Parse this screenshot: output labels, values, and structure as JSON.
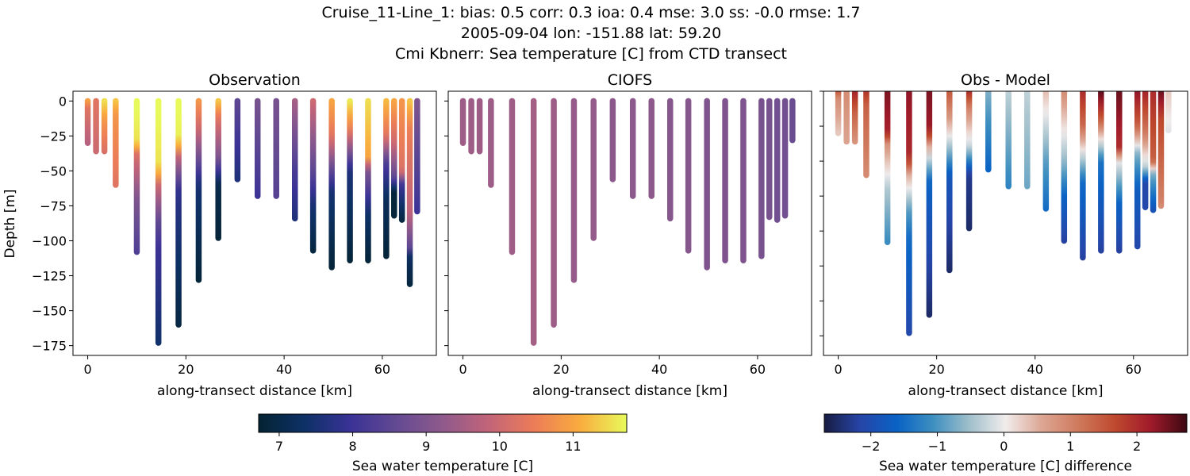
{
  "title_lines": [
    "Cruise_11-Line_1: bias: 0.5  corr: 0.3  ioa: 0.4  mse: 3.0  ss: -0.0  rmse: 1.7",
    "2005-09-04 lon: -151.88 lat: 59.20",
    "Cmi Kbnerr: Sea temperature [C] from CTD transect"
  ],
  "chart_data": [
    {
      "type": "scatter",
      "title": "Observation",
      "xlabel": "along-transect distance [km]",
      "ylabel": "Depth [m]",
      "xlim": [
        -3,
        71
      ],
      "ylim": [
        -182,
        7
      ],
      "xticks": [
        0,
        20,
        40,
        60
      ],
      "yticks": [
        0,
        -25,
        -50,
        -75,
        -100,
        -125,
        -150,
        -175
      ],
      "colormap": "thermal",
      "clim": [
        6.72,
        11.73
      ]
    },
    {
      "type": "scatter",
      "title": "CIOFS",
      "xlabel": "along-transect distance [km]",
      "xlim": [
        -3,
        71
      ],
      "ylim": [
        -182,
        7
      ],
      "xticks": [
        0,
        20,
        40,
        60
      ],
      "colormap": "thermal",
      "clim": [
        6.72,
        11.73
      ]
    },
    {
      "type": "scatter",
      "title": "Obs - Model",
      "xlabel": "along-transect distance [km]",
      "xlim": [
        -3,
        71
      ],
      "ylim": [
        -189,
        0
      ],
      "xticks": [
        0,
        20,
        40,
        60
      ],
      "colormap": "balance",
      "clim": [
        -2.7,
        2.75
      ]
    }
  ],
  "casts": [
    {
      "km": 0,
      "obs_depth": 30,
      "model_depth": 30,
      "model_temp": 9.4,
      "obs": [
        [
          0,
          10.9
        ],
        [
          5,
          10.3
        ],
        [
          30,
          9.7
        ]
      ]
    },
    {
      "km": 1.7,
      "obs_depth": 36,
      "model_depth": 36,
      "model_temp": 9.4,
      "obs": [
        [
          0,
          10.3
        ],
        [
          36,
          10.0
        ]
      ]
    },
    {
      "km": 3.4,
      "obs_depth": 36,
      "model_depth": 36,
      "model_temp": 9.4,
      "obs": [
        [
          0,
          11.5
        ],
        [
          15,
          10.8
        ],
        [
          36,
          10.2
        ]
      ]
    },
    {
      "km": 5.7,
      "obs_depth": 60,
      "model_depth": 60,
      "model_temp": 9.4,
      "obs": [
        [
          0,
          11.3
        ],
        [
          10,
          10.8
        ],
        [
          60,
          10.3
        ]
      ]
    },
    {
      "km": 10,
      "obs_depth": 108,
      "model_depth": 108,
      "model_temp": 9.4,
      "obs": [
        [
          0,
          11.8
        ],
        [
          30,
          11.5
        ],
        [
          38,
          10.2
        ],
        [
          70,
          9.0
        ],
        [
          108,
          8.3
        ]
      ]
    },
    {
      "km": 14.4,
      "obs_depth": 173,
      "model_depth": 173,
      "model_temp": 9.5,
      "obs": [
        [
          0,
          11.8
        ],
        [
          50,
          11.5
        ],
        [
          55,
          10.3
        ],
        [
          85,
          8.6
        ],
        [
          105,
          8.0
        ],
        [
          173,
          7.4
        ]
      ]
    },
    {
      "km": 18.5,
      "obs_depth": 160,
      "model_depth": 160,
      "model_temp": 9.4,
      "obs": [
        [
          0,
          11.8
        ],
        [
          30,
          11.6
        ],
        [
          35,
          10.3
        ],
        [
          50,
          9.0
        ],
        [
          65,
          7.8
        ],
        [
          160,
          6.9
        ]
      ]
    },
    {
      "km": 22.6,
      "obs_depth": 128,
      "model_depth": 128,
      "model_temp": 9.3,
      "obs": [
        [
          0,
          10.8
        ],
        [
          20,
          10.0
        ],
        [
          45,
          8.5
        ],
        [
          60,
          7.5
        ],
        [
          128,
          6.8
        ]
      ]
    },
    {
      "km": 26.6,
      "obs_depth": 98,
      "model_depth": 98,
      "model_temp": 9.3,
      "obs": [
        [
          0,
          11.3
        ],
        [
          12,
          10.3
        ],
        [
          40,
          9.0
        ],
        [
          60,
          7.0
        ],
        [
          98,
          6.8
        ]
      ]
    },
    {
      "km": 30.5,
      "obs_depth": 56,
      "model_depth": 56,
      "model_temp": 9.2,
      "obs": [
        [
          0,
          8.5
        ],
        [
          56,
          7.6
        ]
      ]
    },
    {
      "km": 34.6,
      "obs_depth": 68,
      "model_depth": 68,
      "model_temp": 9.2,
      "obs": [
        [
          0,
          8.9
        ],
        [
          68,
          8.0
        ]
      ]
    },
    {
      "km": 38.4,
      "obs_depth": 68,
      "model_depth": 68,
      "model_temp": 9.2,
      "obs": [
        [
          0,
          8.9
        ],
        [
          68,
          8.4
        ]
      ]
    },
    {
      "km": 42.2,
      "obs_depth": 84,
      "model_depth": 84,
      "model_temp": 9.1,
      "obs": [
        [
          0,
          9.5
        ],
        [
          50,
          8.2
        ],
        [
          84,
          7.6
        ]
      ]
    },
    {
      "km": 45.9,
      "obs_depth": 107,
      "model_depth": 107,
      "model_temp": 9.1,
      "obs": [
        [
          0,
          10.0
        ],
        [
          50,
          8.5
        ],
        [
          75,
          7.5
        ],
        [
          107,
          6.9
        ]
      ]
    },
    {
      "km": 49.7,
      "obs_depth": 119,
      "model_depth": 119,
      "model_temp": 9.0,
      "obs": [
        [
          0,
          11.0
        ],
        [
          25,
          10.3
        ],
        [
          50,
          8.5
        ],
        [
          65,
          7.5
        ],
        [
          119,
          6.8
        ]
      ]
    },
    {
      "km": 53.4,
      "obs_depth": 114,
      "model_depth": 114,
      "model_temp": 9.0,
      "obs": [
        [
          0,
          11.6
        ],
        [
          20,
          10.5
        ],
        [
          50,
          7.6
        ],
        [
          114,
          6.8
        ]
      ]
    },
    {
      "km": 57.1,
      "obs_depth": 114,
      "model_depth": 114,
      "model_temp": 9.0,
      "obs": [
        [
          0,
          11.5
        ],
        [
          40,
          11.0
        ],
        [
          50,
          9.0
        ],
        [
          80,
          7.4
        ],
        [
          114,
          6.8
        ]
      ]
    },
    {
      "km": 60.8,
      "obs_depth": 111,
      "model_depth": 111,
      "model_temp": 8.9,
      "obs": [
        [
          0,
          11.2
        ],
        [
          25,
          10.3
        ],
        [
          45,
          8.2
        ],
        [
          70,
          7.2
        ],
        [
          111,
          6.8
        ]
      ]
    },
    {
      "km": 62.4,
      "obs_depth": 82,
      "model_depth": 83,
      "model_temp": 8.9,
      "obs": [
        [
          0,
          11.0
        ],
        [
          30,
          10.0
        ],
        [
          55,
          8.5
        ],
        [
          65,
          6.8
        ],
        [
          82,
          6.8
        ]
      ]
    },
    {
      "km": 64,
      "obs_depth": 85,
      "model_depth": 85,
      "model_temp": 8.8,
      "obs": [
        [
          0,
          10.8
        ],
        [
          50,
          10.2
        ],
        [
          60,
          8.0
        ],
        [
          85,
          6.9
        ]
      ]
    },
    {
      "km": 65.6,
      "obs_depth": 131,
      "model_depth": 82,
      "model_temp": 8.8,
      "obs": [
        [
          0,
          11.3
        ],
        [
          20,
          10.5
        ],
        [
          80,
          9.8
        ],
        [
          105,
          8.5
        ],
        [
          112,
          7.2
        ],
        [
          131,
          6.9
        ]
      ]
    },
    {
      "km": 67.1,
      "obs_depth": 79,
      "model_depth": 28,
      "model_temp": 8.7,
      "obs": [
        [
          0,
          9.0
        ],
        [
          30,
          8.6
        ],
        [
          79,
          8.0
        ]
      ]
    }
  ],
  "colorbars": [
    {
      "label": "Sea water temperature [C]",
      "ticks": [
        7,
        8,
        9,
        10,
        11
      ],
      "tick_labels": [
        "7",
        "8",
        "9",
        "10",
        "11"
      ],
      "clim": [
        6.72,
        11.73
      ]
    },
    {
      "label": "Sea water temperature [C] difference",
      "ticks": [
        -2,
        -1,
        0,
        1,
        2
      ],
      "tick_labels": [
        "−2",
        "−1",
        "0",
        "1",
        "2"
      ],
      "clim": [
        -2.7,
        2.75
      ]
    }
  ],
  "colors": {
    "thermal": [
      "#042333",
      "#0d3166",
      "#3a3296",
      "#634a92",
      "#8f5a8c",
      "#c26479",
      "#ec7d57",
      "#f9ad3e",
      "#e8fa5b"
    ],
    "balance": [
      "#181c43",
      "#2645a8",
      "#0a62c5",
      "#3d8fc0",
      "#9fbfcb",
      "#f1ecec",
      "#dca693",
      "#cf7a5d",
      "#bf4a2e",
      "#a01a2a",
      "#3c0912"
    ]
  }
}
